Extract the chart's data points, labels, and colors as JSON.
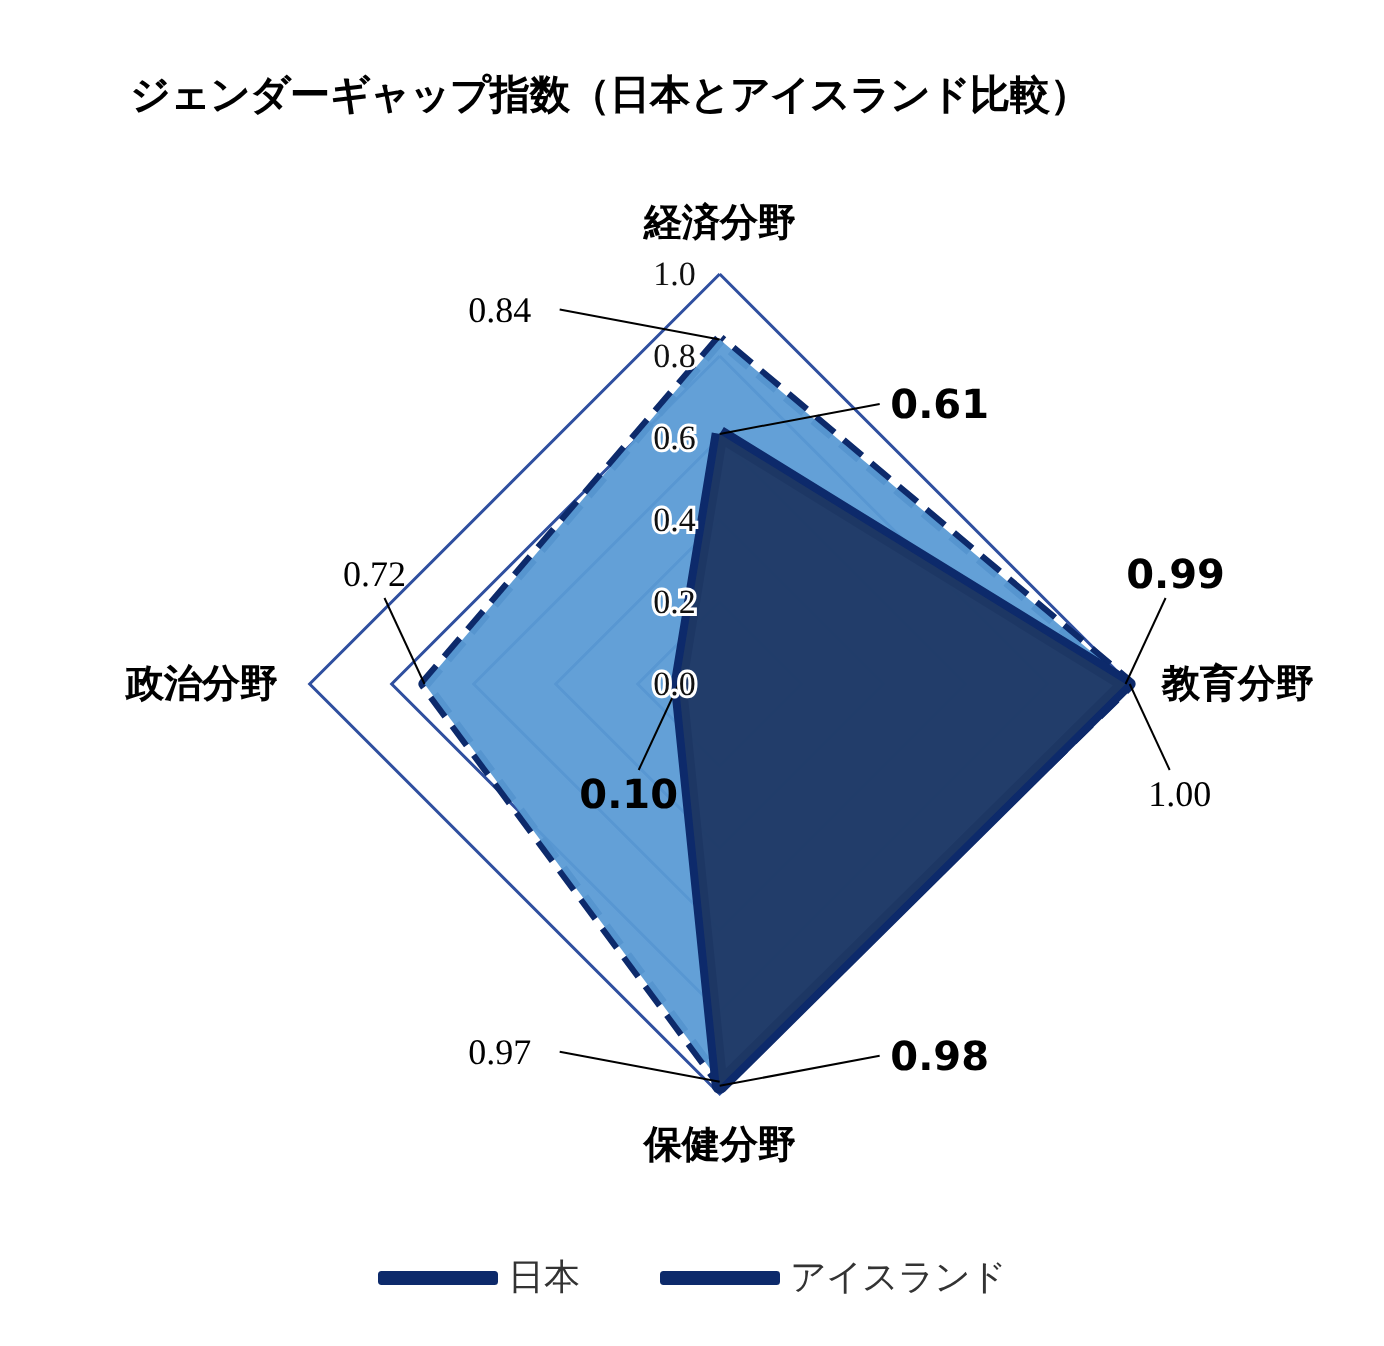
{
  "chart_data": {
    "type": "radar",
    "title": "ジェンダーギャップ指数（日本とアイスランド比較）",
    "categories": [
      "経済分野",
      "教育分野",
      "保健分野",
      "政治分野"
    ],
    "ylim": [
      0,
      1
    ],
    "yticks": [
      {
        "value": 0,
        "label": "0.0"
      },
      0.2,
      0.4,
      0.6,
      0.8,
      {
        "value": 1,
        "label": "1.0"
      }
    ],
    "grid": true,
    "legend": "bottom",
    "line_style": "solid",
    "series": [
      {
        "name": "アイスランド",
        "color": "#0d2a6b",
        "line_style": "dashed",
        "values": [
          0.84,
          1.0,
          0.97,
          0.72
        ],
        "value_labels": [
          "0.84",
          "1.00",
          "0.97",
          "0.72"
        ]
      },
      {
        "name": "日本",
        "color": "#0d2a6b",
        "values": [
          0.61,
          0.99,
          0.98,
          0.1
        ],
        "value_labels": [
          "0.61",
          "0.99",
          "0.98",
          "0.10"
        ]
      }
    ]
  }
}
